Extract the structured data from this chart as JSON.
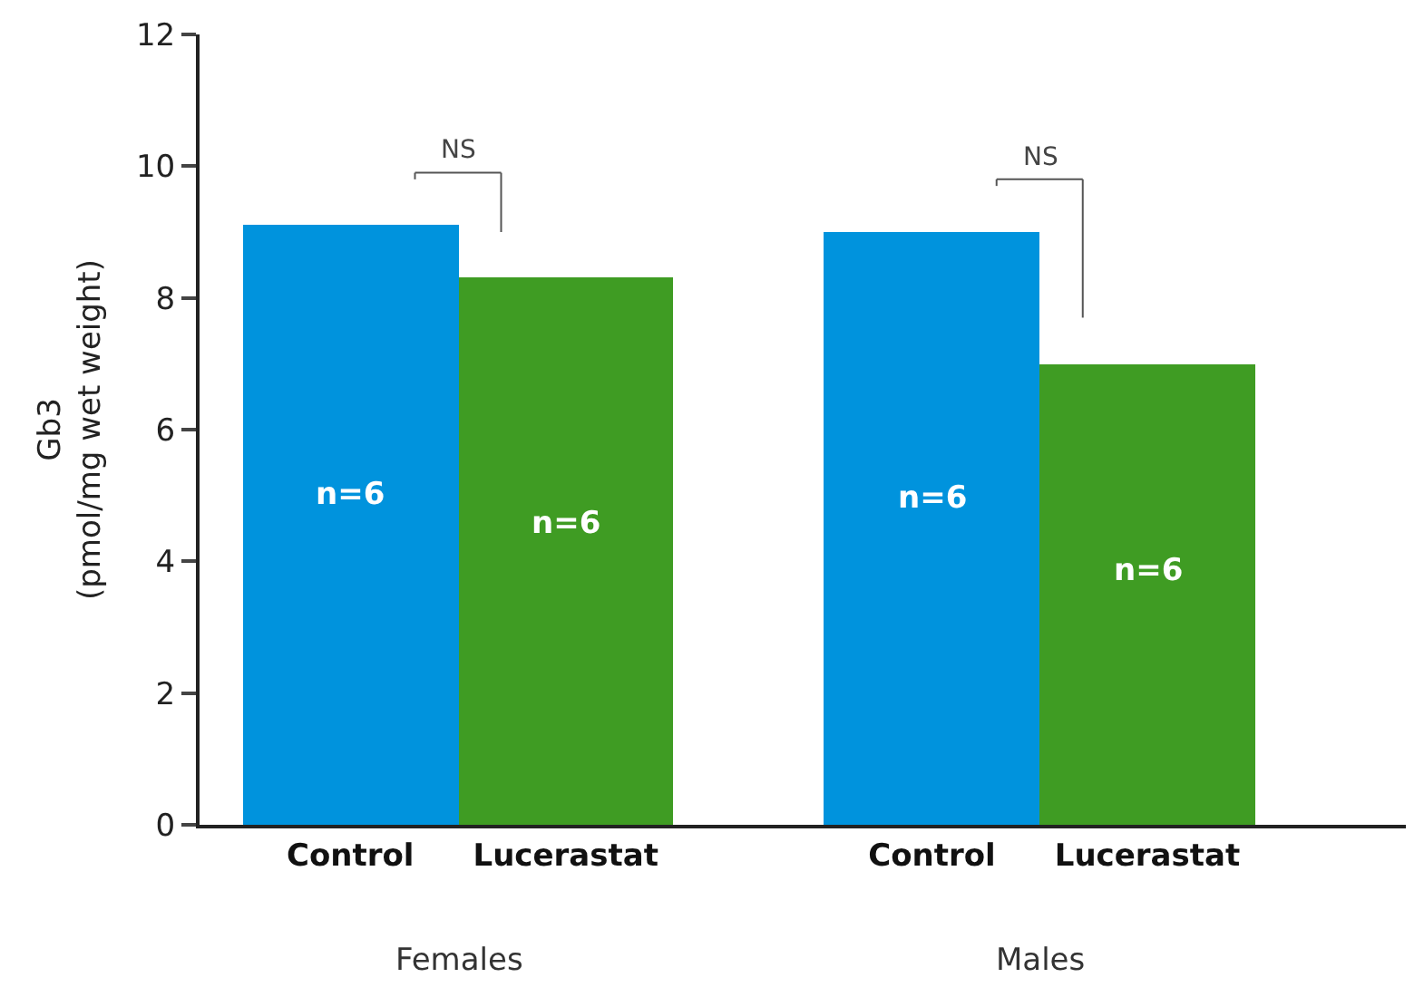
{
  "chart_data": {
    "type": "bar",
    "ylabel": "Gb3\n(pmol/mg wet weight)",
    "categories": [
      "Control",
      "Lucerastat",
      "Control",
      "Lucerastat"
    ],
    "values": [
      9.1,
      8.3,
      9.0,
      7.0
    ],
    "colors": [
      "#0093dd",
      "#3f9c23",
      "#0093dd",
      "#3f9c23"
    ],
    "ylim": [
      0,
      12
    ],
    "yticks": [
      0,
      2,
      4,
      6,
      8,
      10,
      12
    ],
    "annotations": [
      "n=6",
      "n=6",
      "n=6",
      "n=6",
      "NS",
      "NS",
      "Females",
      "Males"
    ]
  }
}
